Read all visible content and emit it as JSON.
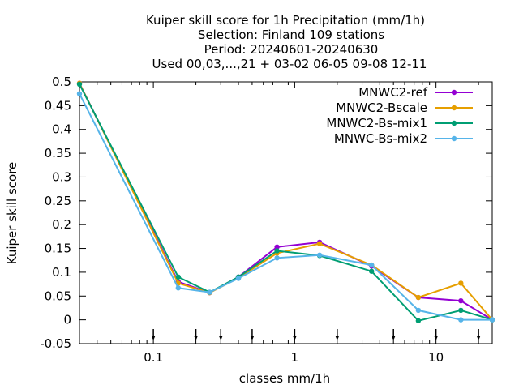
{
  "chart_data": {
    "type": "line",
    "title_lines": [
      "Kuiper skill score  for 1h Precipitation (mm/1h)",
      "Selection: Finland     109 stations",
      "Period: 20240601-20240630",
      "Used 00,03,...,21 + 03-02 06-05 09-08 12-11"
    ],
    "xlabel": "classes mm/1h",
    "ylabel": "Kuiper skill score",
    "xscale": "log",
    "xlim": [
      0.03,
      25
    ],
    "ylim": [
      -0.05,
      0.5
    ],
    "y_ticks": [
      -0.05,
      0,
      0.05,
      0.1,
      0.15,
      0.2,
      0.25,
      0.3,
      0.35,
      0.4,
      0.45,
      0.5
    ],
    "y_tick_labels": [
      "-0.05",
      "0",
      "0.05",
      "0.1",
      "0.15",
      "0.2",
      "0.25",
      "0.3",
      "0.35",
      "0.4",
      "0.45",
      "0.5"
    ],
    "x_ticks": [
      0.1,
      1,
      10
    ],
    "x_tick_labels": [
      "0.1",
      "1",
      "10"
    ],
    "class_markers": [
      0.1,
      0.2,
      0.3,
      0.5,
      1,
      2,
      5,
      10,
      20
    ],
    "grid": false,
    "legend_position": "top-right",
    "x": [
      0.03,
      0.15,
      0.25,
      0.4,
      0.75,
      1.5,
      3.5,
      7.5,
      15,
      25
    ],
    "series": [
      {
        "name": "MNWC2-ref",
        "color": "#9400d3",
        "values": [
          0.497,
          0.08,
          0.057,
          0.09,
          0.153,
          0.163,
          0.113,
          0.047,
          0.04,
          0.0
        ]
      },
      {
        "name": "MNWC2-Bscale",
        "color": "#e69f00",
        "values": [
          0.497,
          0.077,
          0.057,
          0.088,
          0.14,
          0.16,
          0.115,
          0.047,
          0.077,
          0.0
        ]
      },
      {
        "name": "MNWC2-Bs-mix1",
        "color": "#009e73",
        "values": [
          0.495,
          0.09,
          0.058,
          0.09,
          0.145,
          0.135,
          0.102,
          -0.002,
          0.02,
          0.0
        ]
      },
      {
        "name": "MNWC-Bs-mix2",
        "color": "#56b4e9",
        "values": [
          0.475,
          0.067,
          0.058,
          0.087,
          0.13,
          0.136,
          0.115,
          0.02,
          0.0,
          0.0
        ]
      }
    ]
  }
}
